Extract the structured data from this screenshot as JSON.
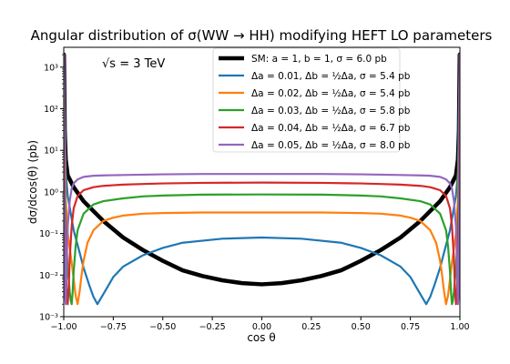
{
  "chart_data": {
    "type": "line",
    "title": "Angular distribution of σ(WW → HH) modifying HEFT LO parameters",
    "xlabel": "cos θ",
    "ylabel": "dσ/dcos(θ) (pb)",
    "xlim": [
      -1.0,
      1.0
    ],
    "ylim": [
      0.001,
      3000
    ],
    "yscale": "log",
    "grid": false,
    "legend_position": "upper-center",
    "annotation": "√s = 3 TeV",
    "x_ticks": [
      "−1.00",
      "−0.75",
      "−0.50",
      "−0.25",
      "0.00",
      "0.25",
      "0.50",
      "0.75",
      "1.00"
    ],
    "y_ticks": [
      "10⁻³",
      "10⁻²",
      "10⁻¹",
      "10⁰",
      "10¹",
      "10²",
      "10³"
    ],
    "series": [
      {
        "name": "SM: a = 1, b = 1, σ = 6.0 pb",
        "color": "#000000",
        "x": [
          -0.999,
          -0.995,
          -0.99,
          -0.98,
          -0.95,
          -0.9,
          -0.8,
          -0.7,
          -0.6,
          -0.5,
          -0.4,
          -0.3,
          -0.2,
          -0.1,
          0.0,
          0.1,
          0.2,
          0.3,
          0.4,
          0.5,
          0.6,
          0.7,
          0.8,
          0.9,
          0.95,
          0.98,
          0.99,
          0.995,
          0.999
        ],
        "y": [
          2000,
          30,
          6,
          2.5,
          1.3,
          0.6,
          0.2,
          0.08,
          0.04,
          0.022,
          0.013,
          0.0095,
          0.0075,
          0.0064,
          0.006,
          0.0064,
          0.0075,
          0.0095,
          0.013,
          0.022,
          0.04,
          0.08,
          0.2,
          0.6,
          1.3,
          2.5,
          6,
          30,
          2000
        ]
      },
      {
        "name": "Δa = 0.01, Δb = ½Δa, σ = 5.4 pb",
        "color": "#1f77b4",
        "x": [
          -0.999,
          -0.99,
          -0.98,
          -0.95,
          -0.92,
          -0.9,
          -0.87,
          -0.85,
          -0.83,
          -0.8,
          -0.75,
          -0.7,
          -0.6,
          -0.5,
          -0.4,
          -0.2,
          0.0,
          0.2,
          0.4,
          0.5,
          0.6,
          0.7,
          0.75,
          0.8,
          0.83,
          0.85,
          0.87,
          0.9,
          0.92,
          0.95,
          0.98,
          0.99,
          0.999
        ],
        "y": [
          2000,
          3,
          0.8,
          0.12,
          0.035,
          0.015,
          0.0055,
          0.003,
          0.002,
          0.0035,
          0.009,
          0.016,
          0.03,
          0.045,
          0.06,
          0.075,
          0.08,
          0.075,
          0.06,
          0.045,
          0.03,
          0.016,
          0.009,
          0.0035,
          0.002,
          0.003,
          0.0055,
          0.015,
          0.035,
          0.12,
          0.8,
          3,
          2000
        ]
      },
      {
        "name": "Δa = 0.02, Δb = ½Δa, σ = 5.4 pb",
        "color": "#ff7f0e",
        "x": [
          -0.999,
          -0.995,
          -0.99,
          -0.98,
          -0.96,
          -0.95,
          -0.94,
          -0.93,
          -0.92,
          -0.91,
          -0.9,
          -0.88,
          -0.85,
          -0.8,
          -0.75,
          -0.7,
          -0.6,
          -0.5,
          -0.3,
          0.0,
          0.3,
          0.5,
          0.6,
          0.7,
          0.75,
          0.8,
          0.85,
          0.88,
          0.9,
          0.91,
          0.92,
          0.93,
          0.94,
          0.95,
          0.96,
          0.98,
          0.99,
          0.995,
          0.999
        ],
        "y": [
          2000,
          12,
          0.6,
          0.1,
          0.02,
          0.008,
          0.0032,
          0.002,
          0.004,
          0.01,
          0.022,
          0.06,
          0.12,
          0.2,
          0.24,
          0.27,
          0.3,
          0.31,
          0.32,
          0.32,
          0.32,
          0.31,
          0.3,
          0.27,
          0.24,
          0.2,
          0.12,
          0.06,
          0.022,
          0.01,
          0.004,
          0.002,
          0.0032,
          0.008,
          0.02,
          0.1,
          0.6,
          12,
          2000
        ]
      },
      {
        "name": "Δa = 0.03, Δb = ½Δa, σ = 5.8 pb",
        "color": "#2ca02c",
        "x": [
          -0.999,
          -0.995,
          -0.99,
          -0.98,
          -0.97,
          -0.965,
          -0.96,
          -0.955,
          -0.95,
          -0.94,
          -0.93,
          -0.9,
          -0.85,
          -0.8,
          -0.7,
          -0.6,
          -0.5,
          -0.3,
          0.0,
          0.3,
          0.5,
          0.6,
          0.7,
          0.8,
          0.85,
          0.9,
          0.93,
          0.94,
          0.95,
          0.955,
          0.96,
          0.965,
          0.97,
          0.98,
          0.99,
          0.995,
          0.999
        ],
        "y": [
          2000,
          2,
          0.12,
          0.015,
          0.004,
          0.0025,
          0.002,
          0.004,
          0.012,
          0.05,
          0.12,
          0.3,
          0.5,
          0.6,
          0.7,
          0.78,
          0.82,
          0.86,
          0.87,
          0.86,
          0.82,
          0.78,
          0.7,
          0.6,
          0.5,
          0.3,
          0.12,
          0.05,
          0.012,
          0.004,
          0.002,
          0.0025,
          0.004,
          0.015,
          0.12,
          2,
          2000
        ]
      },
      {
        "name": "Δa = 0.04, Δb = ½Δa, σ = 6.7 pb",
        "color": "#d62728",
        "x": [
          -0.999,
          -0.995,
          -0.99,
          -0.985,
          -0.98,
          -0.975,
          -0.97,
          -0.96,
          -0.95,
          -0.93,
          -0.9,
          -0.85,
          -0.8,
          -0.7,
          -0.6,
          -0.5,
          -0.3,
          0.0,
          0.3,
          0.5,
          0.6,
          0.7,
          0.8,
          0.85,
          0.9,
          0.93,
          0.95,
          0.96,
          0.97,
          0.975,
          0.98,
          0.985,
          0.99,
          0.995,
          0.999
        ],
        "y": [
          2000,
          0.5,
          0.02,
          0.0035,
          0.002,
          0.005,
          0.025,
          0.15,
          0.4,
          0.8,
          1.1,
          1.3,
          1.4,
          1.5,
          1.55,
          1.6,
          1.65,
          1.68,
          1.65,
          1.6,
          1.55,
          1.5,
          1.4,
          1.3,
          1.1,
          0.8,
          0.4,
          0.15,
          0.025,
          0.005,
          0.002,
          0.0035,
          0.02,
          0.5,
          2000
        ]
      },
      {
        "name": "Δa = 0.05, Δb = ½Δa, σ = 8.0 pb",
        "color": "#9467bd",
        "x": [
          -0.999,
          -0.997,
          -0.995,
          -0.993,
          -0.99,
          -0.985,
          -0.98,
          -0.97,
          -0.96,
          -0.95,
          -0.93,
          -0.9,
          -0.85,
          -0.8,
          -0.7,
          -0.6,
          -0.5,
          -0.3,
          0.0,
          0.3,
          0.5,
          0.6,
          0.7,
          0.8,
          0.85,
          0.9,
          0.93,
          0.95,
          0.96,
          0.97,
          0.98,
          0.985,
          0.99,
          0.993,
          0.995,
          0.997,
          0.999
        ],
        "y": [
          2000,
          1.5,
          0.05,
          0.003,
          0.002,
          0.02,
          0.15,
          0.6,
          1.2,
          1.6,
          2.0,
          2.3,
          2.45,
          2.5,
          2.55,
          2.6,
          2.65,
          2.7,
          2.7,
          2.7,
          2.65,
          2.6,
          2.55,
          2.5,
          2.45,
          2.3,
          2.0,
          1.6,
          1.2,
          0.6,
          0.15,
          0.02,
          0.002,
          0.003,
          0.05,
          1.5,
          2000
        ]
      }
    ]
  }
}
